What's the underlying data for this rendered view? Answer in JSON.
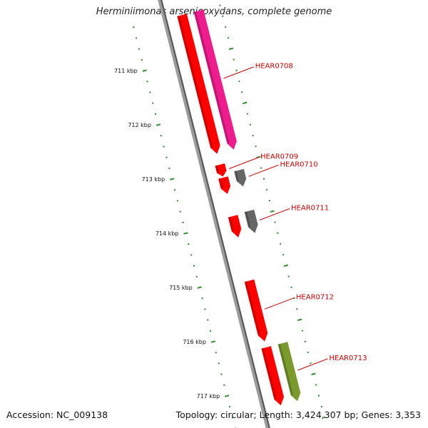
{
  "title": "Herminiimonas arsenicoxydans, complete genome",
  "footer": {
    "accession": "Accession: NC_009138",
    "topology": "Topology: circular; Length: 3,424,307 bp; Genes: 3,353"
  },
  "ticks": [
    {
      "label": "711 kbp",
      "pos_kbp": 711
    },
    {
      "label": "712 kbp",
      "pos_kbp": 712
    },
    {
      "label": "713 kbp",
      "pos_kbp": 713
    },
    {
      "label": "714 kbp",
      "pos_kbp": 714
    },
    {
      "label": "715 kbp",
      "pos_kbp": 715
    },
    {
      "label": "716 kbp",
      "pos_kbp": 716
    },
    {
      "label": "717 kbp",
      "pos_kbp": 717
    }
  ],
  "genes": [
    {
      "name": "HEAR0708",
      "lane": 2,
      "start_kbp": 710.2,
      "end_kbp": 712.76,
      "color": "#ee1d8e",
      "labeled": true
    },
    {
      "name": "",
      "lane": 1,
      "start_kbp": 710.2,
      "end_kbp": 712.76,
      "color": "#ff0000",
      "labeled": false
    },
    {
      "name": "HEAR0709",
      "lane": 1,
      "start_kbp": 712.96,
      "end_kbp": 713.18,
      "color": "#ff0000",
      "labeled": true
    },
    {
      "name": "HEAR0710",
      "lane": 2,
      "start_kbp": 713.14,
      "end_kbp": 713.44,
      "color": "#666666",
      "labeled": true
    },
    {
      "name": "",
      "lane": 1,
      "start_kbp": 713.2,
      "end_kbp": 713.5,
      "color": "#ff0000",
      "labeled": false
    },
    {
      "name": "HEAR0711",
      "lane": 2,
      "start_kbp": 713.89,
      "end_kbp": 714.3,
      "color": "#666666",
      "labeled": true
    },
    {
      "name": "",
      "lane": 1,
      "start_kbp": 713.91,
      "end_kbp": 714.3,
      "color": "#ff0000",
      "labeled": false
    },
    {
      "name": "HEAR0712",
      "lane": 1,
      "start_kbp": 715.1,
      "end_kbp": 716.22,
      "color": "#ff0000",
      "labeled": true
    },
    {
      "name": "HEAR0713",
      "lane": 2,
      "start_kbp": 716.33,
      "end_kbp": 717.4,
      "color": "#7a9a2e",
      "labeled": true
    },
    {
      "name": "",
      "lane": 1,
      "start_kbp": 716.33,
      "end_kbp": 717.4,
      "color": "#ff0000",
      "labeled": false
    }
  ]
}
